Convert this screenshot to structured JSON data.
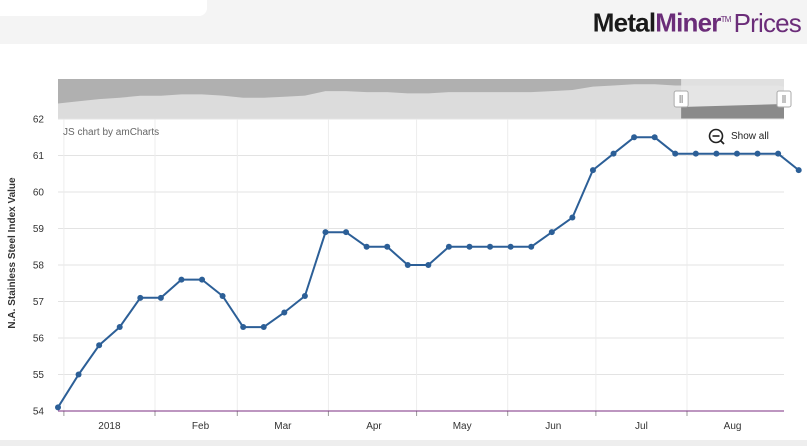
{
  "brand": {
    "metal": "Metal",
    "miner": "Miner",
    "tm": "TM",
    "prices": "Prices"
  },
  "chart_data": {
    "type": "line",
    "ylabel": "N.A. Stainless Steel Index Value",
    "ylim": [
      54,
      62
    ],
    "yticks": [
      54,
      55,
      56,
      57,
      58,
      59,
      60,
      61,
      62
    ],
    "xlim": [
      "2017-12-30",
      "2018-09-03"
    ],
    "xticks": [
      {
        "date": "2018-01-01",
        "label": "2018"
      },
      {
        "date": "2018-02-01",
        "label": "Feb"
      },
      {
        "date": "2018-03-01",
        "label": "Mar"
      },
      {
        "date": "2018-04-01",
        "label": "Apr"
      },
      {
        "date": "2018-05-01",
        "label": "May"
      },
      {
        "date": "2018-06-01",
        "label": "Jun"
      },
      {
        "date": "2018-07-01",
        "label": "Jul"
      },
      {
        "date": "2018-08-01",
        "label": "Aug"
      }
    ],
    "credit": "JS chart by amCharts",
    "show_all_label": "Show all",
    "grid": true,
    "line_color": "#2c5f97",
    "series": [
      {
        "points": [
          {
            "x": "2017-12-30",
            "y": 54.1
          },
          {
            "x": "2018-01-06",
            "y": 55.0
          },
          {
            "x": "2018-01-13",
            "y": 55.8
          },
          {
            "x": "2018-01-20",
            "y": 56.3
          },
          {
            "x": "2018-01-27",
            "y": 57.1
          },
          {
            "x": "2018-02-03",
            "y": 57.1
          },
          {
            "x": "2018-02-10",
            "y": 57.6
          },
          {
            "x": "2018-02-17",
            "y": 57.6
          },
          {
            "x": "2018-02-24",
            "y": 57.15
          },
          {
            "x": "2018-03-03",
            "y": 56.3
          },
          {
            "x": "2018-03-10",
            "y": 56.3
          },
          {
            "x": "2018-03-17",
            "y": 56.7
          },
          {
            "x": "2018-03-24",
            "y": 57.15
          },
          {
            "x": "2018-03-31",
            "y": 58.9
          },
          {
            "x": "2018-04-07",
            "y": 58.9
          },
          {
            "x": "2018-04-14",
            "y": 58.5
          },
          {
            "x": "2018-04-21",
            "y": 58.5
          },
          {
            "x": "2018-04-28",
            "y": 58.0
          },
          {
            "x": "2018-05-05",
            "y": 58.0
          },
          {
            "x": "2018-05-12",
            "y": 58.5
          },
          {
            "x": "2018-05-19",
            "y": 58.5
          },
          {
            "x": "2018-05-26",
            "y": 58.5
          },
          {
            "x": "2018-06-02",
            "y": 58.5
          },
          {
            "x": "2018-06-09",
            "y": 58.5
          },
          {
            "x": "2018-06-16",
            "y": 58.9
          },
          {
            "x": "2018-06-23",
            "y": 59.3
          },
          {
            "x": "2018-06-30",
            "y": 60.6
          },
          {
            "x": "2018-07-07",
            "y": 61.05
          },
          {
            "x": "2018-07-14",
            "y": 61.5
          },
          {
            "x": "2018-07-21",
            "y": 61.5
          },
          {
            "x": "2018-07-28",
            "y": 61.05
          },
          {
            "x": "2018-08-04",
            "y": 61.05
          },
          {
            "x": "2018-08-11",
            "y": 61.05
          },
          {
            "x": "2018-08-18",
            "y": 61.05
          },
          {
            "x": "2018-08-25",
            "y": 61.05
          },
          {
            "x": "2018-09-01",
            "y": 61.05
          },
          {
            "x": "2018-09-08",
            "y": 60.6
          }
        ]
      }
    ],
    "scrollbar": {
      "selected_range": [
        "2018-07-30",
        "2018-09-08"
      ]
    }
  }
}
